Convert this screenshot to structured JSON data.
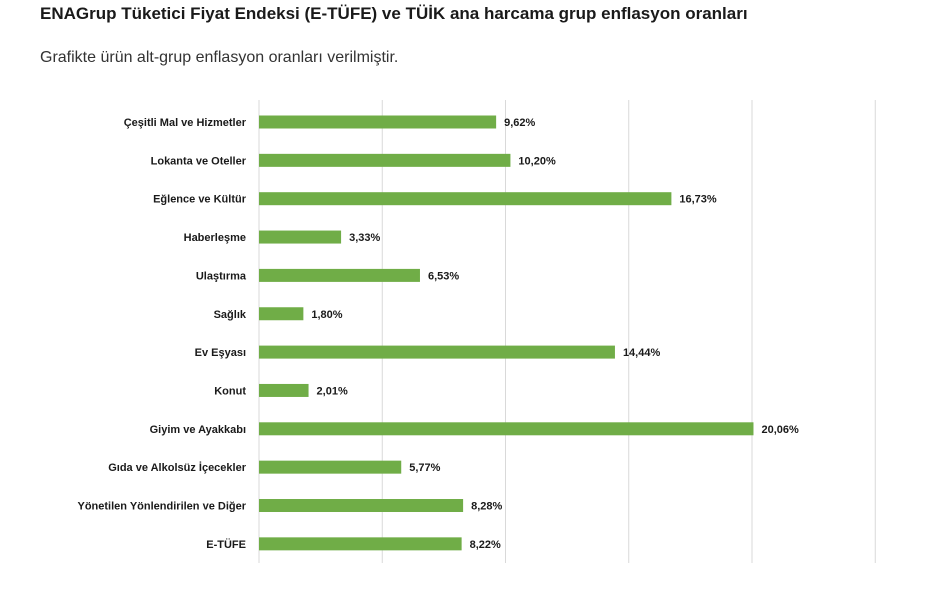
{
  "header": {
    "title": "ENAGrup Tüketici Fiyat Endeksi (E-TÜFE) ve TÜİK ana harcama grup enflasyon oranları",
    "subtitle": "Grafikte ürün alt-grup enflasyon oranları verilmiştir."
  },
  "chart_data": {
    "type": "bar",
    "orientation": "horizontal",
    "categories": [
      "Çeşitli Mal ve Hizmetler",
      "Lokanta ve Oteller",
      "Eğlence ve Kültür",
      "Haberleşme",
      "Ulaştırma",
      "Sağlık",
      "Ev Eşyası",
      "Konut",
      "Giyim ve Ayakkabı",
      "Gıda ve Alkolsüz İçecekler",
      "Yönetilen Yönlendirilen ve Diğer",
      "E-TÜFE"
    ],
    "values": [
      9.62,
      10.2,
      16.73,
      3.33,
      6.53,
      1.8,
      14.44,
      2.01,
      20.06,
      5.77,
      8.28,
      8.22
    ],
    "value_labels": [
      "9,62%",
      "10,20%",
      "16,73%",
      "3,33%",
      "6,53%",
      "1,80%",
      "14,44%",
      "2,01%",
      "20,06%",
      "5,77%",
      "8,28%",
      "8,22%"
    ],
    "xlim": [
      0,
      25
    ],
    "grid": true,
    "bar_color": "#70ad47",
    "grid_color": "#d9d9d9"
  }
}
